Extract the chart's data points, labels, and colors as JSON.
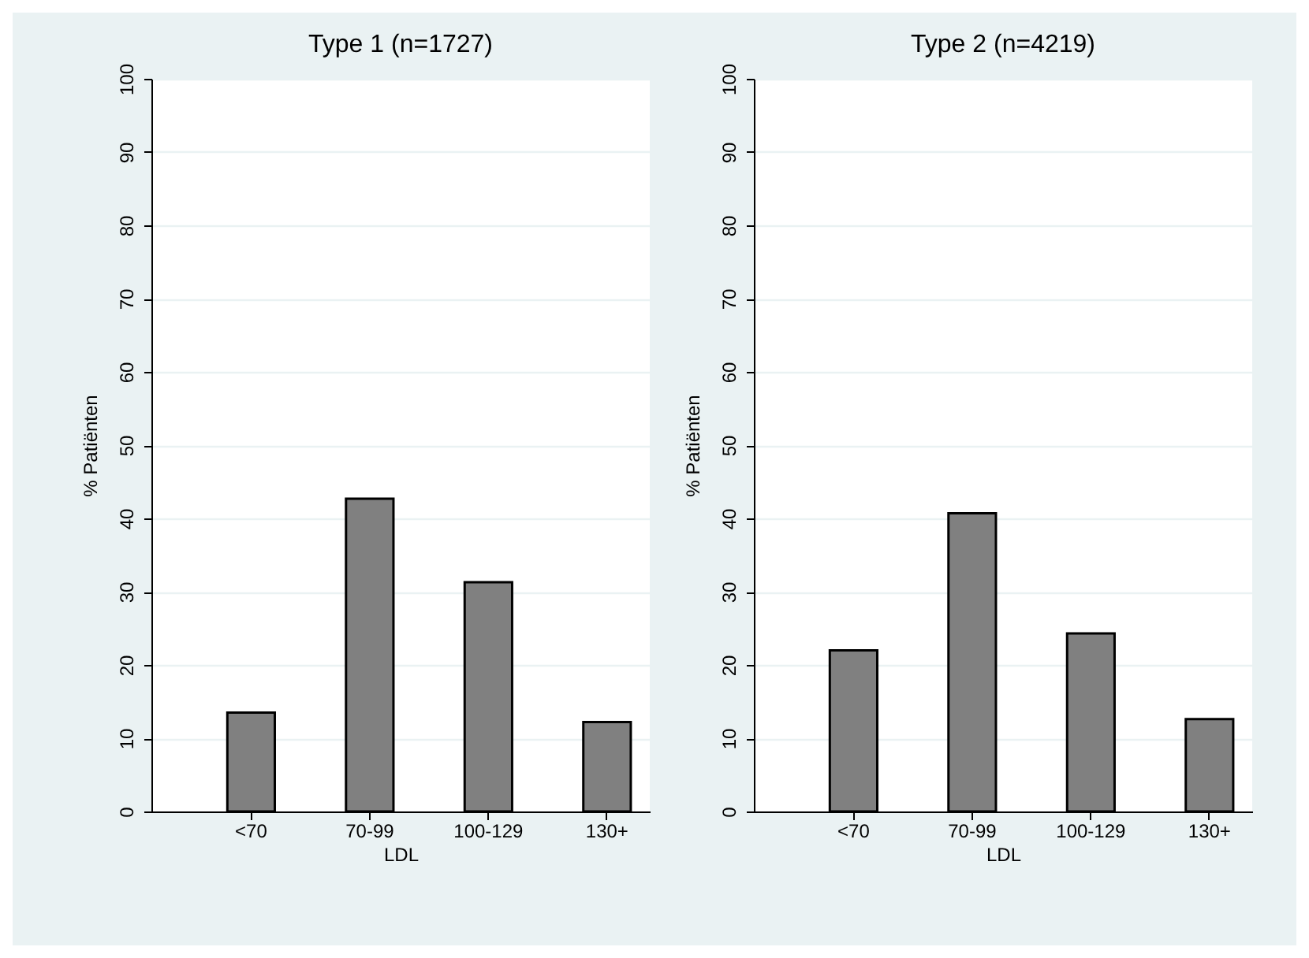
{
  "chart_data": [
    {
      "type": "bar",
      "title": "Type 1 (n=1727)",
      "categories": [
        "<70",
        "70-99",
        "100-129",
        "130+"
      ],
      "values": [
        13.5,
        42.7,
        31.3,
        12.2
      ],
      "color": "#808080",
      "xlabel": "LDL",
      "ylabel": "% Patiënten",
      "ylim": [
        0,
        100
      ],
      "yticks": [
        0,
        10,
        20,
        30,
        40,
        50,
        60,
        70,
        80,
        90,
        100
      ],
      "grid": "y"
    },
    {
      "type": "bar",
      "title": "Type 2 (n=4219)",
      "categories": [
        "<70",
        "70-99",
        "100-129",
        "130+"
      ],
      "values": [
        22.0,
        40.7,
        24.3,
        12.6
      ],
      "color": "#808080",
      "xlabel": "LDL",
      "ylabel": "% Patiënten",
      "ylim": [
        0,
        100
      ],
      "yticks": [
        0,
        10,
        20,
        30,
        40,
        50,
        60,
        70,
        80,
        90,
        100
      ],
      "grid": "y"
    }
  ]
}
